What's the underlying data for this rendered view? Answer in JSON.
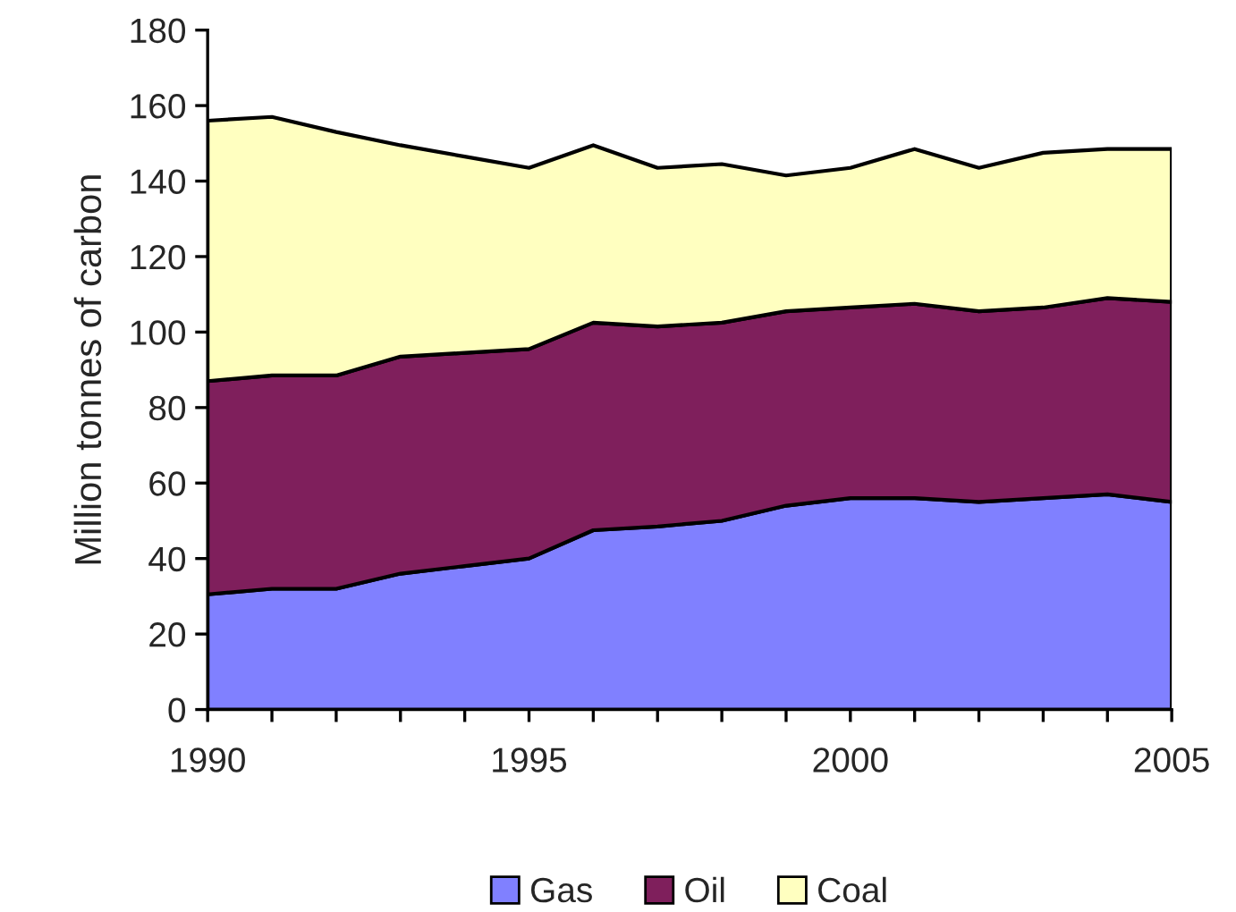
{
  "chart_data": {
    "type": "area",
    "stacked": true,
    "ylabel": "Million tonnes of carbon",
    "x": [
      1990,
      1991,
      1992,
      1993,
      1994,
      1995,
      1996,
      1997,
      1998,
      1999,
      2000,
      2001,
      2002,
      2003,
      2004,
      2005
    ],
    "series": [
      {
        "name": "Gas",
        "color": "#8080ff",
        "values": [
          30.5,
          32,
          32,
          36,
          38,
          40,
          47.5,
          48.5,
          50,
          54,
          56,
          56,
          55,
          56,
          57,
          55
        ]
      },
      {
        "name": "Oil",
        "color": "#7f1f5c",
        "values": [
          56.5,
          56.5,
          56.5,
          57.5,
          56.5,
          55.5,
          55,
          53,
          52.5,
          51.5,
          50.5,
          51.5,
          50.5,
          50.5,
          52,
          53
        ]
      },
      {
        "name": "Coal",
        "color": "#ffffc0",
        "values": [
          69,
          68.5,
          64.5,
          56,
          52,
          48,
          47,
          42,
          42,
          36,
          37,
          41,
          38,
          41,
          39.5,
          40.5
        ]
      }
    ],
    "xlim": [
      1990,
      2005
    ],
    "xticks": [
      1990,
      {
        "value": 1991,
        "label": null
      },
      {
        "value": 1992,
        "label": null
      },
      {
        "value": 1993,
        "label": null
      },
      {
        "value": 1994,
        "label": null
      },
      1995,
      {
        "value": 1996,
        "label": null
      },
      {
        "value": 1997,
        "label": null
      },
      {
        "value": 1998,
        "label": null
      },
      {
        "value": 1999,
        "label": null
      },
      2000,
      {
        "value": 2001,
        "label": null
      },
      {
        "value": 2002,
        "label": null
      },
      {
        "value": 2003,
        "label": null
      },
      {
        "value": 2004,
        "label": null
      },
      2005
    ],
    "ylim": [
      0,
      180
    ],
    "yticks": [
      0,
      20,
      40,
      60,
      80,
      100,
      120,
      140,
      160,
      180
    ],
    "grid": false,
    "legend": "bottom"
  }
}
